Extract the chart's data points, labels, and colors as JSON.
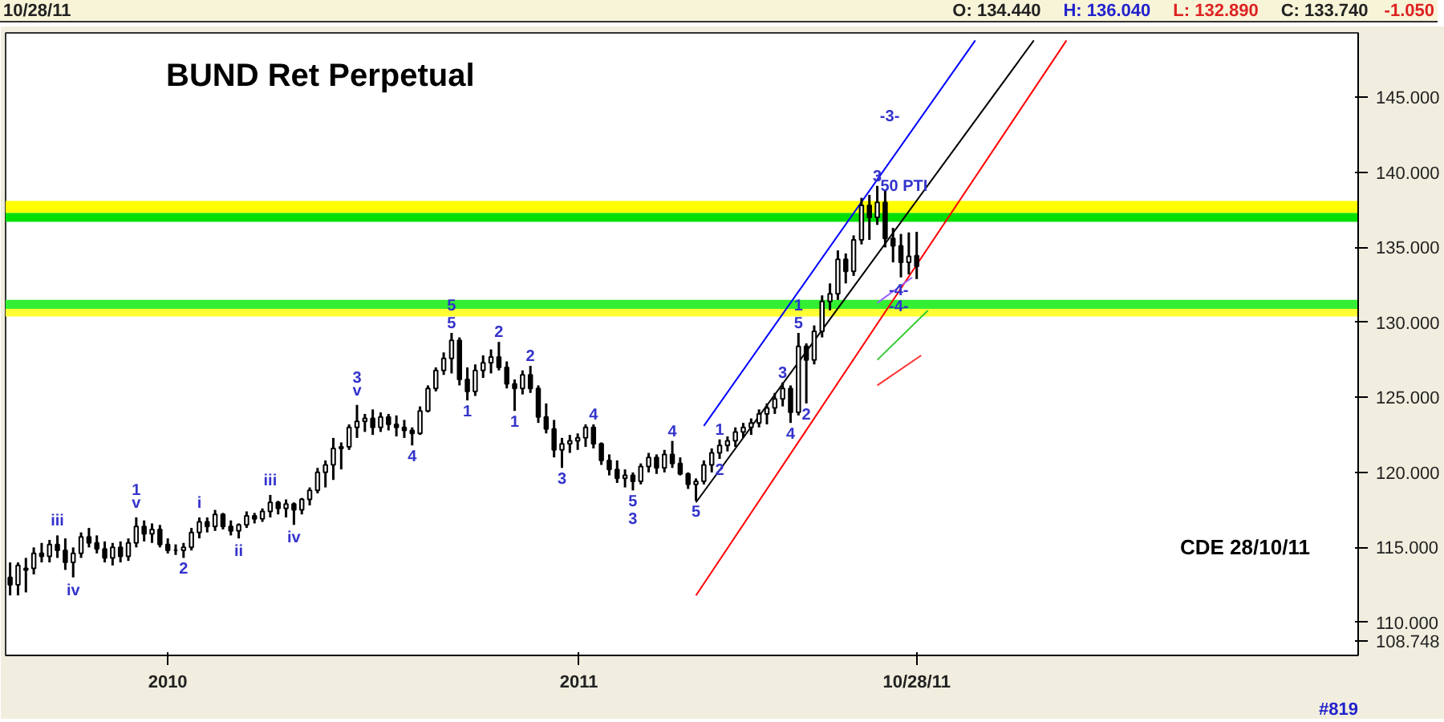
{
  "chart_data": {
    "type": "candlestick",
    "title": "BUND Ret Perpetual",
    "color": "#000000",
    "x": [
      "2009-08-14",
      "2009-08-21",
      "2009-08-28",
      "2009-09-04",
      "2009-09-11",
      "2009-09-18",
      "2009-09-25",
      "2009-10-02",
      "2009-10-09",
      "2009-10-16",
      "2009-10-23",
      "2009-10-30",
      "2009-11-06",
      "2009-11-13",
      "2009-11-20",
      "2009-11-27",
      "2009-12-04",
      "2009-12-11",
      "2009-12-18",
      "2009-12-25",
      "2010-01-01",
      "2010-01-08",
      "2010-01-15",
      "2010-01-22",
      "2010-01-29",
      "2010-02-05",
      "2010-02-12",
      "2010-02-19",
      "2010-02-26",
      "2010-03-05",
      "2010-03-12",
      "2010-03-19",
      "2010-03-26",
      "2010-04-02",
      "2010-04-09",
      "2010-04-16",
      "2010-04-23",
      "2010-04-30",
      "2010-05-07",
      "2010-05-14",
      "2010-05-21",
      "2010-05-28",
      "2010-06-04",
      "2010-06-11",
      "2010-06-18",
      "2010-06-25",
      "2010-07-02",
      "2010-07-09",
      "2010-07-16",
      "2010-07-23",
      "2010-07-30",
      "2010-08-06",
      "2010-08-13",
      "2010-08-20",
      "2010-08-27",
      "2010-09-03",
      "2010-09-10",
      "2010-09-17",
      "2010-09-24",
      "2010-10-01",
      "2010-10-08",
      "2010-10-15",
      "2010-10-22",
      "2010-10-29",
      "2010-11-05",
      "2010-11-12",
      "2010-11-19",
      "2010-11-26",
      "2010-12-03",
      "2010-12-10",
      "2010-12-17",
      "2010-12-24",
      "2010-12-31",
      "2011-01-07",
      "2011-01-14",
      "2011-01-21",
      "2011-01-28",
      "2011-02-04",
      "2011-02-11",
      "2011-02-18",
      "2011-02-25",
      "2011-03-04",
      "2011-03-11",
      "2011-03-18",
      "2011-03-25",
      "2011-04-01",
      "2011-04-08",
      "2011-04-15",
      "2011-04-22",
      "2011-04-29",
      "2011-05-06",
      "2011-05-13",
      "2011-05-20",
      "2011-05-27",
      "2011-06-03",
      "2011-06-10",
      "2011-06-17",
      "2011-06-24",
      "2011-07-01",
      "2011-07-08",
      "2011-07-15",
      "2011-07-22",
      "2011-07-29",
      "2011-08-05",
      "2011-08-12",
      "2011-08-19",
      "2011-08-26",
      "2011-09-02",
      "2011-09-09",
      "2011-09-16",
      "2011-09-23",
      "2011-09-30",
      "2011-10-07",
      "2011-10-14",
      "2011-10-21",
      "2011-10-28"
    ],
    "ohlc": [
      [
        113.0,
        114.0,
        111.8,
        112.5
      ],
      [
        112.5,
        114.0,
        111.8,
        113.8
      ],
      [
        113.5,
        114.3,
        112.0,
        113.6
      ],
      [
        113.6,
        115.0,
        113.2,
        114.6
      ],
      [
        114.6,
        115.3,
        114.0,
        114.4
      ],
      [
        114.4,
        115.5,
        114.0,
        115.2
      ],
      [
        115.2,
        115.8,
        114.3,
        114.8
      ],
      [
        114.8,
        115.6,
        113.5,
        114.0
      ],
      [
        114.0,
        115.0,
        113.0,
        114.6
      ],
      [
        114.6,
        116.0,
        114.3,
        115.7
      ],
      [
        115.7,
        116.3,
        115.0,
        115.3
      ],
      [
        115.3,
        115.8,
        114.6,
        114.9
      ],
      [
        114.9,
        115.4,
        114.0,
        114.3
      ],
      [
        114.3,
        115.3,
        113.8,
        115.0
      ],
      [
        115.0,
        115.4,
        114.0,
        114.4
      ],
      [
        114.4,
        115.6,
        114.1,
        115.3
      ],
      [
        115.3,
        117.0,
        115.0,
        116.4
      ],
      [
        116.4,
        116.8,
        115.4,
        115.9
      ],
      [
        115.9,
        116.6,
        115.3,
        116.2
      ],
      [
        116.2,
        116.5,
        115.0,
        115.2
      ],
      [
        115.2,
        115.6,
        114.6,
        114.8
      ],
      [
        114.8,
        115.2,
        114.5,
        114.8
      ],
      [
        114.8,
        115.3,
        114.3,
        115.0
      ],
      [
        115.0,
        116.3,
        114.8,
        116.0
      ],
      [
        116.0,
        117.0,
        115.6,
        116.7
      ],
      [
        116.7,
        117.0,
        116.0,
        116.4
      ],
      [
        116.4,
        117.5,
        116.1,
        117.2
      ],
      [
        117.2,
        117.3,
        116.2,
        116.4
      ],
      [
        116.4,
        116.8,
        115.8,
        116.1
      ],
      [
        116.1,
        116.6,
        115.6,
        116.5
      ],
      [
        116.5,
        117.4,
        116.3,
        117.1
      ],
      [
        117.1,
        117.3,
        116.6,
        116.9
      ],
      [
        116.9,
        117.6,
        116.7,
        117.4
      ],
      [
        117.4,
        118.5,
        117.0,
        118.0
      ],
      [
        118.0,
        118.1,
        117.2,
        117.6
      ],
      [
        117.6,
        118.2,
        117.0,
        117.9
      ],
      [
        117.9,
        118.0,
        116.5,
        117.5
      ],
      [
        117.5,
        118.3,
        117.2,
        118.2
      ],
      [
        118.2,
        119.0,
        117.8,
        118.8
      ],
      [
        118.8,
        120.3,
        118.6,
        120.0
      ],
      [
        120.0,
        120.8,
        119.0,
        120.5
      ],
      [
        120.5,
        122.3,
        119.5,
        121.6
      ],
      [
        121.6,
        122.0,
        120.2,
        121.7
      ],
      [
        121.7,
        123.2,
        121.5,
        123.0
      ],
      [
        123.0,
        124.5,
        122.3,
        123.4
      ],
      [
        123.4,
        123.9,
        122.7,
        123.6
      ],
      [
        123.6,
        124.2,
        122.5,
        123.0
      ],
      [
        123.0,
        124.0,
        122.7,
        123.7
      ],
      [
        123.7,
        123.9,
        122.8,
        123.2
      ],
      [
        123.2,
        123.8,
        122.4,
        123.0
      ],
      [
        123.0,
        123.5,
        122.3,
        122.8
      ],
      [
        122.8,
        123.0,
        121.8,
        122.6
      ],
      [
        122.6,
        124.4,
        122.5,
        124.1
      ],
      [
        124.1,
        125.8,
        124.0,
        125.6
      ],
      [
        125.6,
        127.0,
        125.4,
        126.8
      ],
      [
        126.8,
        128.0,
        126.5,
        127.6
      ],
      [
        127.6,
        129.3,
        126.6,
        128.8
      ],
      [
        128.8,
        129.0,
        125.8,
        126.2
      ],
      [
        126.2,
        127.0,
        124.8,
        125.4
      ],
      [
        125.4,
        127.2,
        125.1,
        126.8
      ],
      [
        126.8,
        127.8,
        126.3,
        127.3
      ],
      [
        127.3,
        128.2,
        126.6,
        127.7
      ],
      [
        127.7,
        128.7,
        126.8,
        127.0
      ],
      [
        127.0,
        127.4,
        125.6,
        125.9
      ],
      [
        125.9,
        126.2,
        124.1,
        125.6
      ],
      [
        125.6,
        126.8,
        125.2,
        126.5
      ],
      [
        126.5,
        127.1,
        125.3,
        125.6
      ],
      [
        125.6,
        125.8,
        123.3,
        123.7
      ],
      [
        123.7,
        124.6,
        122.6,
        122.9
      ],
      [
        122.9,
        123.5,
        121.0,
        121.5
      ],
      [
        121.5,
        122.3,
        120.3,
        121.9
      ],
      [
        121.9,
        122.5,
        121.3,
        122.1
      ],
      [
        122.1,
        122.6,
        121.5,
        122.3
      ],
      [
        122.3,
        123.2,
        121.7,
        123.0
      ],
      [
        123.0,
        123.2,
        121.6,
        121.9
      ],
      [
        121.9,
        122.0,
        120.5,
        120.8
      ],
      [
        120.8,
        121.2,
        119.8,
        120.2
      ],
      [
        120.2,
        120.8,
        119.3,
        119.6
      ],
      [
        119.6,
        120.2,
        119.0,
        119.8
      ],
      [
        119.8,
        120.0,
        118.8,
        119.4
      ],
      [
        119.4,
        120.6,
        119.2,
        120.4
      ],
      [
        120.4,
        121.3,
        120.0,
        121.0
      ],
      [
        121.0,
        121.2,
        119.9,
        120.3
      ],
      [
        120.3,
        121.5,
        120.0,
        121.2
      ],
      [
        121.2,
        122.1,
        120.3,
        120.6
      ],
      [
        120.6,
        121.0,
        119.8,
        119.9
      ],
      [
        119.9,
        120.0,
        118.9,
        119.2
      ],
      [
        119.2,
        119.6,
        118.1,
        119.4
      ],
      [
        119.4,
        120.8,
        119.2,
        120.5
      ],
      [
        120.5,
        121.6,
        120.0,
        121.3
      ],
      [
        121.3,
        122.2,
        120.9,
        121.8
      ],
      [
        121.8,
        122.4,
        121.4,
        122.1
      ],
      [
        122.1,
        123.0,
        121.7,
        122.7
      ],
      [
        122.7,
        123.3,
        122.3,
        123.0
      ],
      [
        123.0,
        123.6,
        122.5,
        123.3
      ],
      [
        123.3,
        124.2,
        123.0,
        123.9
      ],
      [
        123.9,
        124.6,
        123.2,
        124.3
      ],
      [
        124.3,
        125.3,
        123.9,
        124.9
      ],
      [
        124.9,
        126.0,
        124.4,
        125.6
      ],
      [
        125.6,
        125.8,
        123.3,
        124.0
      ],
      [
        124.0,
        129.3,
        123.8,
        128.4
      ],
      [
        128.4,
        128.6,
        124.6,
        127.5
      ],
      [
        127.5,
        129.8,
        127.2,
        129.4
      ],
      [
        129.4,
        131.8,
        129.0,
        131.4
      ],
      [
        131.4,
        132.6,
        130.8,
        131.9
      ],
      [
        131.9,
        134.8,
        131.5,
        134.2
      ],
      [
        134.2,
        134.6,
        132.6,
        133.4
      ],
      [
        133.4,
        135.8,
        133.1,
        135.5
      ],
      [
        135.5,
        138.3,
        135.2,
        137.8
      ],
      [
        137.8,
        138.5,
        135.5,
        137.0
      ],
      [
        137.0,
        139.1,
        136.5,
        138.0
      ],
      [
        138.0,
        138.8,
        135.0,
        135.6
      ],
      [
        135.6,
        136.3,
        134.0,
        135.1
      ],
      [
        135.1,
        135.9,
        133.0,
        134.0
      ],
      [
        134.0,
        136.0,
        133.2,
        134.4
      ],
      [
        134.44,
        136.04,
        132.89,
        133.74
      ]
    ],
    "series": [
      {
        "type": "line",
        "color": "#0000ff",
        "x": [
          "2011-04-22",
          "2011-12-19"
        ],
        "values": [
          123.1,
          148.8
        ]
      },
      {
        "type": "line",
        "color": "#000000",
        "x": [
          "2011-04-15",
          "2012-02-09"
        ],
        "values": [
          118.0,
          148.8
        ]
      },
      {
        "type": "line",
        "color": "#ff0000",
        "x": [
          "2011-04-15",
          "2012-03-09"
        ],
        "values": [
          111.8,
          148.8
        ]
      },
      {
        "type": "line",
        "color": "#9966ff",
        "x": [
          "2011-09-23",
          "2011-10-24"
        ],
        "values": [
          131.3,
          133.0
        ]
      },
      {
        "type": "line",
        "color": "#33cc33",
        "x": [
          "2011-09-23",
          "2011-11-07"
        ],
        "values": [
          127.5,
          130.8
        ]
      },
      {
        "type": "line",
        "color": "#ff3333",
        "x": [
          "2011-09-23",
          "2011-11-01"
        ],
        "values": [
          125.8,
          127.8
        ]
      }
    ],
    "bands": [
      {
        "axis": "y",
        "from": 137.3,
        "to": 138.1,
        "color": "#ffff00"
      },
      {
        "axis": "y",
        "from": 136.7,
        "to": 137.3,
        "color": "#00e000"
      },
      {
        "axis": "y",
        "from": 130.9,
        "to": 131.5,
        "color": "#33ee33"
      },
      {
        "axis": "y",
        "from": 130.4,
        "to": 130.9,
        "color": "#ffff33"
      }
    ],
    "xlim": [
      "2009-08-10",
      "2012-11-23"
    ],
    "xticks": [
      {
        "value": "2010-01-01",
        "label": "2010"
      },
      {
        "value": "2011-01-01",
        "label": "2011"
      },
      {
        "value": "2011-10-28",
        "label": "10/28/11"
      }
    ],
    "ylim": [
      107.8,
      149.3
    ],
    "yticks": [
      {
        "value": 108.748,
        "label": "108.748"
      },
      {
        "value": 110,
        "label": "110.000"
      },
      {
        "value": 115,
        "label": "115.000"
      },
      {
        "value": 120,
        "label": "120.000"
      },
      {
        "value": 125,
        "label": "125.000"
      },
      {
        "value": 130,
        "label": "130.000"
      },
      {
        "value": 135,
        "label": "135.000"
      },
      {
        "value": 140,
        "label": "140.000"
      },
      {
        "value": 145,
        "label": "145.000"
      }
    ],
    "grid": false,
    "annotations": [
      "10/28/11",
      "O: 134.440",
      "H: 136.040",
      "L: 132.890",
      "C: 133.740",
      "-1.050",
      "#819",
      "CDE 28/10/11",
      {
        "text": "iii",
        "x": "2009-09-25",
        "y": 115.8
      },
      {
        "text": "iv",
        "x": "2009-10-09",
        "y": 113.0
      },
      {
        "text": "v",
        "x": "2009-12-04",
        "y": 117.0
      },
      {
        "text": "1",
        "x": "2009-12-04",
        "y": 117.0
      },
      {
        "text": "2",
        "x": "2010-01-15",
        "y": 114.3
      },
      {
        "text": "i",
        "x": "2010-01-29",
        "y": 117.0
      },
      {
        "text": "ii",
        "x": "2010-03-05",
        "y": 115.6
      },
      {
        "text": "iii",
        "x": "2010-04-02",
        "y": 118.5
      },
      {
        "text": "iv",
        "x": "2010-04-23",
        "y": 116.5
      },
      {
        "text": "v",
        "x": "2010-06-18",
        "y": 124.5
      },
      {
        "text": "3",
        "x": "2010-06-18",
        "y": 124.5
      },
      {
        "text": "4",
        "x": "2010-08-06",
        "y": 121.8
      },
      {
        "text": "5",
        "x": "2010-09-10",
        "y": 129.3
      },
      {
        "text": "5",
        "x": "2010-09-10",
        "y": 129.3
      },
      {
        "text": "1",
        "x": "2010-09-24",
        "y": 124.8
      },
      {
        "text": "2",
        "x": "2010-10-22",
        "y": 128.7
      },
      {
        "text": "1",
        "x": "2010-11-05",
        "y": 124.1
      },
      {
        "text": "2",
        "x": "2010-11-19",
        "y": 127.1
      },
      {
        "text": "3",
        "x": "2010-12-17",
        "y": 120.3
      },
      {
        "text": "4",
        "x": "2011-01-14",
        "y": 123.2
      },
      {
        "text": "5",
        "x": "2011-02-18",
        "y": 118.8
      },
      {
        "text": "3",
        "x": "2011-02-18",
        "y": 118.8
      },
      {
        "text": "4",
        "x": "2011-03-25",
        "y": 122.1
      },
      {
        "text": "5",
        "x": "2011-04-15",
        "y": 118.1
      },
      {
        "text": "1",
        "x": "2011-05-06",
        "y": 122.2
      },
      {
        "text": "2",
        "x": "2011-05-06",
        "y": 120.9
      },
      {
        "text": "3",
        "x": "2011-07-01",
        "y": 126.0
      },
      {
        "text": "4",
        "x": "2011-07-08",
        "y": 123.3
      },
      {
        "text": "5",
        "x": "2011-07-15",
        "y": 129.3
      },
      {
        "text": "1",
        "x": "2011-07-15",
        "y": 129.3
      },
      {
        "text": "2",
        "x": "2011-07-22",
        "y": 124.6
      },
      {
        "text": "3",
        "x": "2011-09-23",
        "y": 139.1
      },
      {
        "text": "-3-",
        "x": "2011-10-27",
        "y": 143.1
      },
      {
        "text": "-4-",
        "x": "2011-11-04",
        "y": 131.5
      },
      {
        "text": "-4-",
        "x": "2011-11-04",
        "y": 130.4
      },
      {
        "text": "50 PTI",
        "x": "2011-11-21",
        "y": 138.1
      }
    ]
  }
}
